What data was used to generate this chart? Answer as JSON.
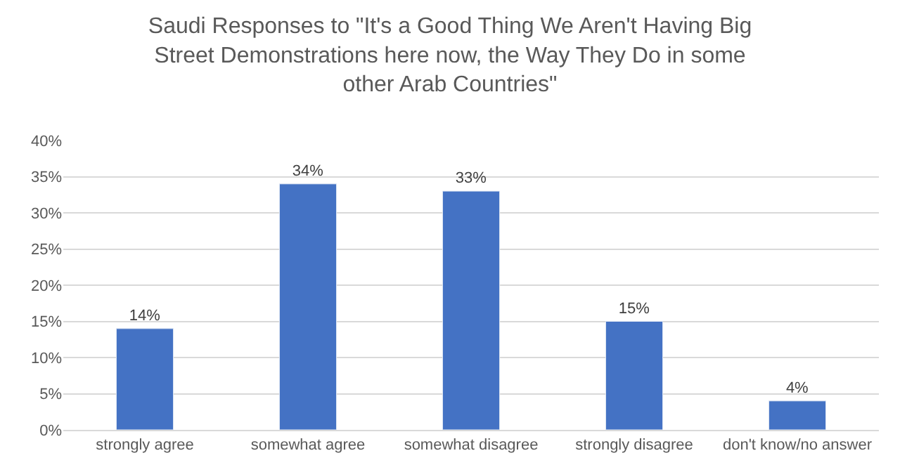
{
  "chart_data": {
    "type": "bar",
    "title": "Saudi Responses to \"It's a Good Thing We Aren't Having Big Street Demonstrations here now, the Way They Do in some other Arab Countries\"",
    "categories": [
      "strongly agree",
      "somewhat agree",
      "somewhat disagree",
      "strongly disagree",
      "don't know/no answer"
    ],
    "values": [
      14,
      34,
      33,
      15,
      4
    ],
    "value_labels": [
      "14%",
      "34%",
      "33%",
      "15%",
      "4%"
    ],
    "color": "#4472c4",
    "ylim": [
      0,
      40
    ],
    "yticks": [
      {
        "value": 0,
        "label": "0%"
      },
      {
        "value": 5,
        "label": "5%"
      },
      {
        "value": 10,
        "label": "10%"
      },
      {
        "value": 15,
        "label": "15%"
      },
      {
        "value": 20,
        "label": "20%"
      },
      {
        "value": 25,
        "label": "25%"
      },
      {
        "value": 30,
        "label": "30%"
      },
      {
        "value": 35,
        "label": "35%"
      },
      {
        "value": 40,
        "label": "40%"
      }
    ],
    "grid": "y"
  }
}
